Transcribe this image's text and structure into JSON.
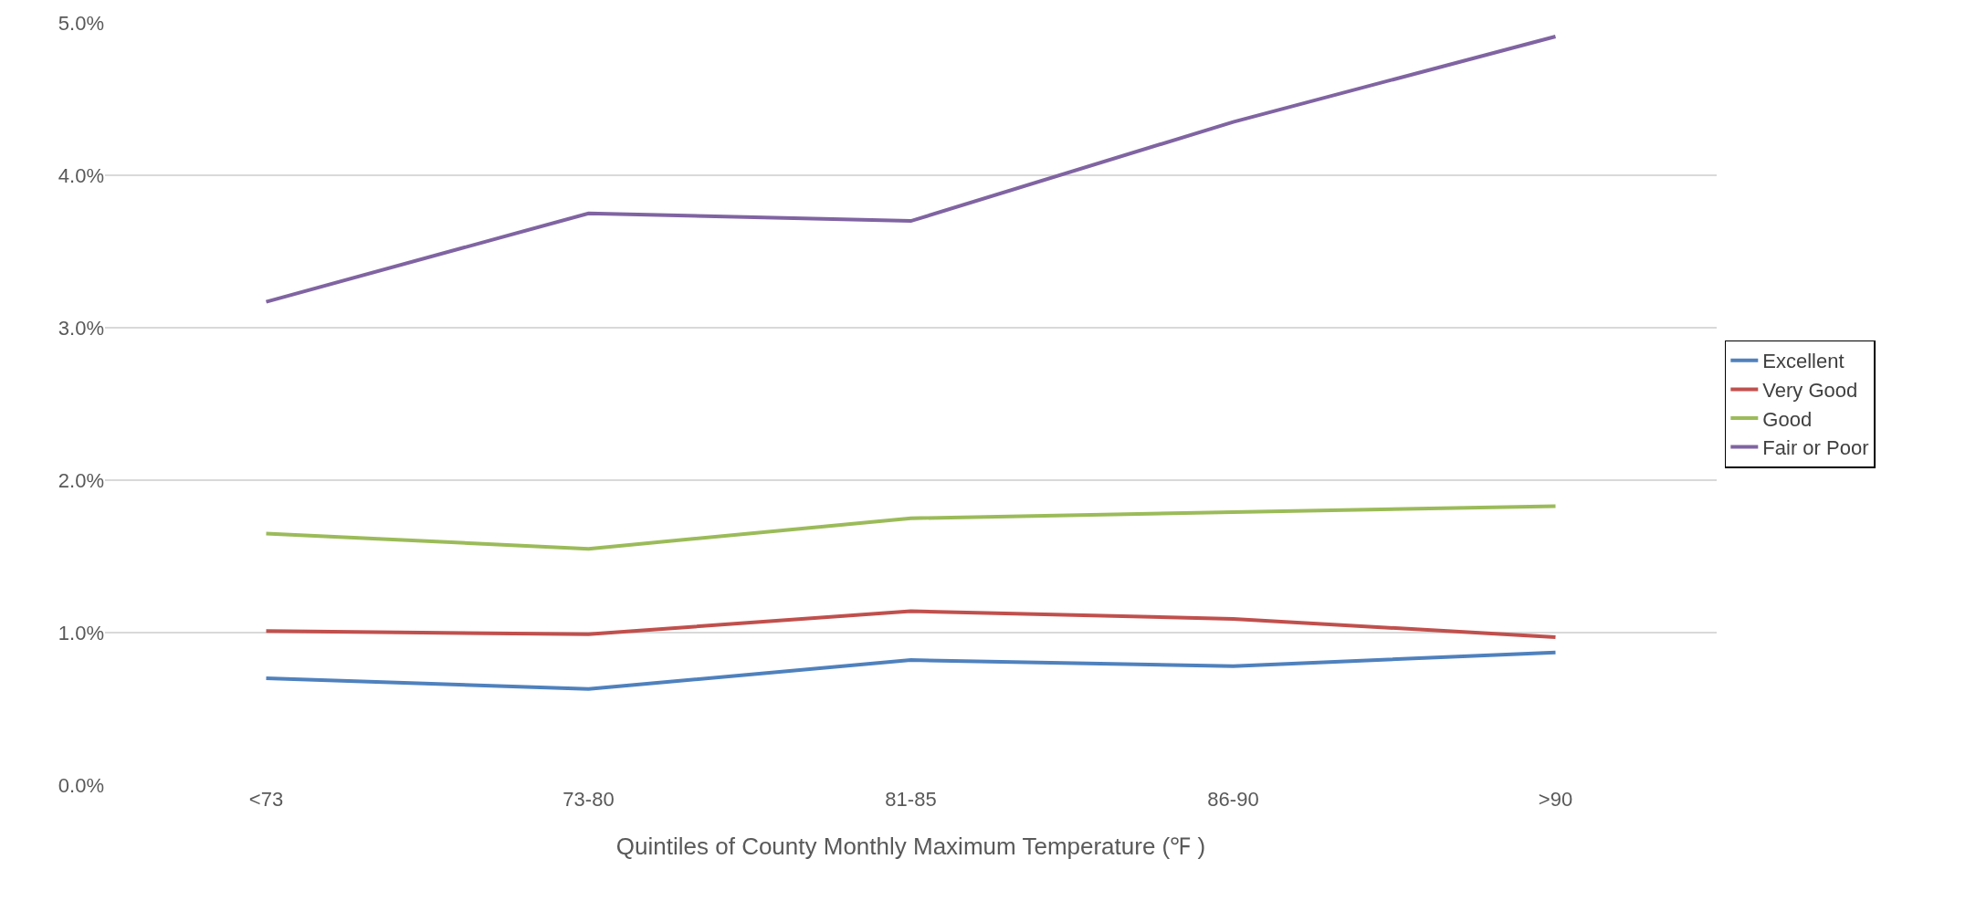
{
  "chart_data": {
    "type": "line",
    "xlabel": "Quintiles of County Monthly Maximum Temperature (℉ )",
    "categories": [
      "<73",
      "73-80",
      "81-85",
      "86-90",
      ">90"
    ],
    "series": [
      {
        "name": "Excellent",
        "color": "#4f81bd",
        "values": [
          0.7,
          0.63,
          0.82,
          0.78,
          0.87
        ]
      },
      {
        "name": "Very Good",
        "color": "#c0504d",
        "values": [
          1.01,
          0.99,
          1.14,
          1.09,
          0.97
        ]
      },
      {
        "name": "Good",
        "color": "#9bbb59",
        "values": [
          1.65,
          1.55,
          1.75,
          1.79,
          1.83
        ]
      },
      {
        "name": "Fair or Poor",
        "color": "#8064a2",
        "values": [
          3.17,
          3.75,
          3.7,
          4.35,
          4.91
        ]
      }
    ],
    "ylim": [
      0,
      5
    ],
    "yticks": [
      {
        "value": 0,
        "label": "0.0%"
      },
      {
        "value": 1,
        "label": "1.0%"
      },
      {
        "value": 2,
        "label": "2.0%"
      },
      {
        "value": 3,
        "label": "3.0%"
      },
      {
        "value": 4,
        "label": "4.0%"
      },
      {
        "value": 5,
        "label": "5.0%"
      }
    ],
    "grid": "y",
    "legend": "right",
    "marker": "none",
    "line_style": "solid"
  }
}
